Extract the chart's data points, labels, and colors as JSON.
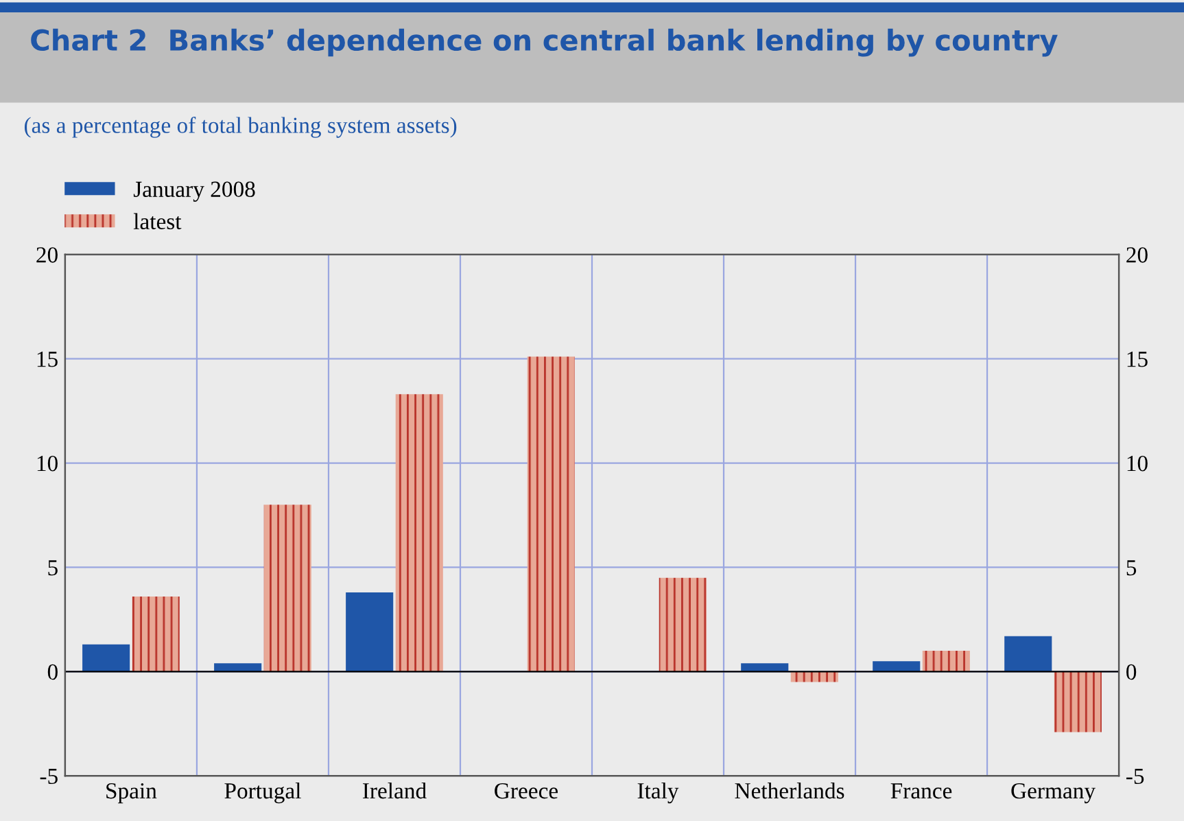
{
  "chart_data": {
    "type": "bar",
    "title": "Chart 2  Banks’ dependence on central bank lending by country",
    "subtitle": "(as a percentage of total banking system assets)",
    "categories": [
      "Spain",
      "Portugal",
      "Ireland",
      "Greece",
      "Italy",
      "Netherlands",
      "France",
      "Germany"
    ],
    "series": [
      {
        "name": "January 2008",
        "color": "#1f56a8",
        "values": [
          1.3,
          0.4,
          3.8,
          0,
          0,
          0.4,
          0.5,
          1.7
        ]
      },
      {
        "name": "latest",
        "color": "#e8a896",
        "values": [
          3.6,
          8.0,
          13.3,
          15.1,
          4.5,
          -0.5,
          1.0,
          -2.9
        ]
      }
    ],
    "ylim": [
      -5,
      20
    ],
    "yticks": [
      -5,
      0,
      5,
      10,
      15,
      20
    ],
    "y2lim": [
      -5,
      20
    ],
    "y2ticks": [
      -5,
      0,
      5,
      10,
      15,
      20
    ],
    "grid": true,
    "legend": "top left"
  }
}
